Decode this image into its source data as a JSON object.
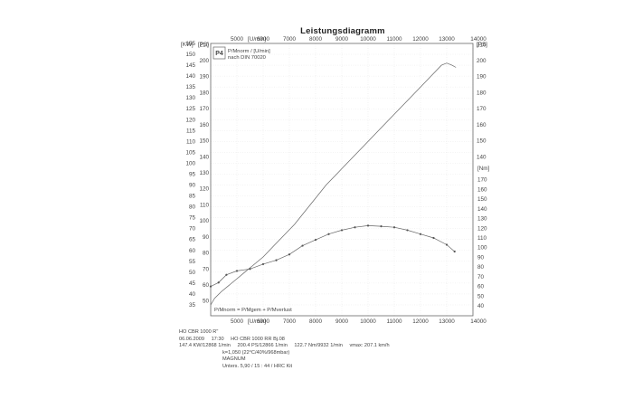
{
  "title": "Leistungsdiagramm",
  "rpm_unit": "[U/min]",
  "left_units": {
    "kw": "[KW]",
    "ps": "[PS]"
  },
  "right_units": {
    "ps": "[PS]",
    "nm": "[Nm]"
  },
  "legend": {
    "badge": "P4",
    "line1": "P/Mnorm / [U/min]",
    "line2": "nach DIN 70020",
    "bottom": "P/Mnorm = P/Mgem + P/Mverlust"
  },
  "footer": {
    "row1": {
      "vehicle": "HO CBR 1000 R\""
    },
    "row2": {
      "date": "06.06.2009",
      "time": "17:30",
      "model": "HO CBR 1000 RR Bj.08"
    },
    "row3": {
      "power_kw": "147.4 KW/12868 1/min",
      "power_ps": "200.4 PS/12866 1/min",
      "torque": "122.7 Nm/9932 1/min",
      "vmax": "vmax: 207.1 km/h"
    },
    "row4": {
      "k": "k=1,050 (22°C/40%/968mbar)"
    },
    "row5": {
      "name": "MAGNUM"
    },
    "row6": {
      "note": "Unters. 5,90 / 15 : 44 / HRC Kit"
    }
  },
  "chart_data": {
    "type": "line",
    "title": "Leistungsdiagramm",
    "x_label": "[U/min]",
    "x_range": [
      4000,
      14000
    ],
    "x_ticks": [
      4000,
      5000,
      6000,
      7000,
      8000,
      9000,
      10000,
      11000,
      12000,
      13000,
      14000
    ],
    "kw_range": [
      30,
      155
    ],
    "kw_ticks": [
      35,
      40,
      45,
      50,
      55,
      60,
      65,
      70,
      75,
      80,
      85,
      90,
      95,
      100,
      105,
      110,
      115,
      120,
      125,
      130,
      135,
      140,
      145,
      150,
      155
    ],
    "ps_ticks": [
      30,
      40,
      50,
      60,
      70,
      80,
      90,
      100,
      110,
      120,
      130,
      140,
      150,
      160,
      170,
      180,
      190,
      200,
      210
    ],
    "ps_right_ticks": [
      30,
      40,
      50,
      60,
      70,
      80,
      90,
      100,
      110,
      120,
      130,
      140,
      150,
      160,
      170,
      180,
      190,
      200,
      210
    ],
    "nm_range": [
      40,
      180
    ],
    "nm_ticks": [
      40,
      50,
      60,
      70,
      80,
      90,
      100,
      110,
      120,
      130,
      140,
      150,
      160,
      170,
      180
    ],
    "series": [
      {
        "name": "P/Mnorm",
        "axis": "kw",
        "style": "solid",
        "x": [
          4000,
          4150,
          4400,
          4700,
          5000,
          5300,
          5600,
          6000,
          6400,
          6800,
          7200,
          7600,
          8000,
          8400,
          8800,
          9200,
          9600,
          10000,
          10400,
          10800,
          11200,
          11600,
          12000,
          12400,
          12800,
          13000,
          13200,
          13350
        ],
        "values": [
          35,
          38,
          41,
          44,
          47,
          50,
          53,
          57,
          62,
          67,
          72,
          78,
          84,
          90,
          95,
          100,
          105,
          110,
          115,
          120,
          125,
          130,
          135,
          140,
          145,
          146,
          145,
          144
        ]
      },
      {
        "name": "Torque",
        "axis": "nm",
        "style": "dots",
        "x": [
          4000,
          4300,
          4600,
          5000,
          5500,
          6000,
          6500,
          7000,
          7500,
          8000,
          8500,
          9000,
          9500,
          10000,
          10500,
          11000,
          11500,
          12000,
          12500,
          13000,
          13300
        ],
        "values": [
          60,
          64,
          72,
          76,
          78,
          83,
          87,
          93,
          102,
          108,
          114,
          118,
          121,
          122.7,
          122,
          121,
          118,
          114,
          110,
          103,
          96
        ]
      }
    ]
  }
}
